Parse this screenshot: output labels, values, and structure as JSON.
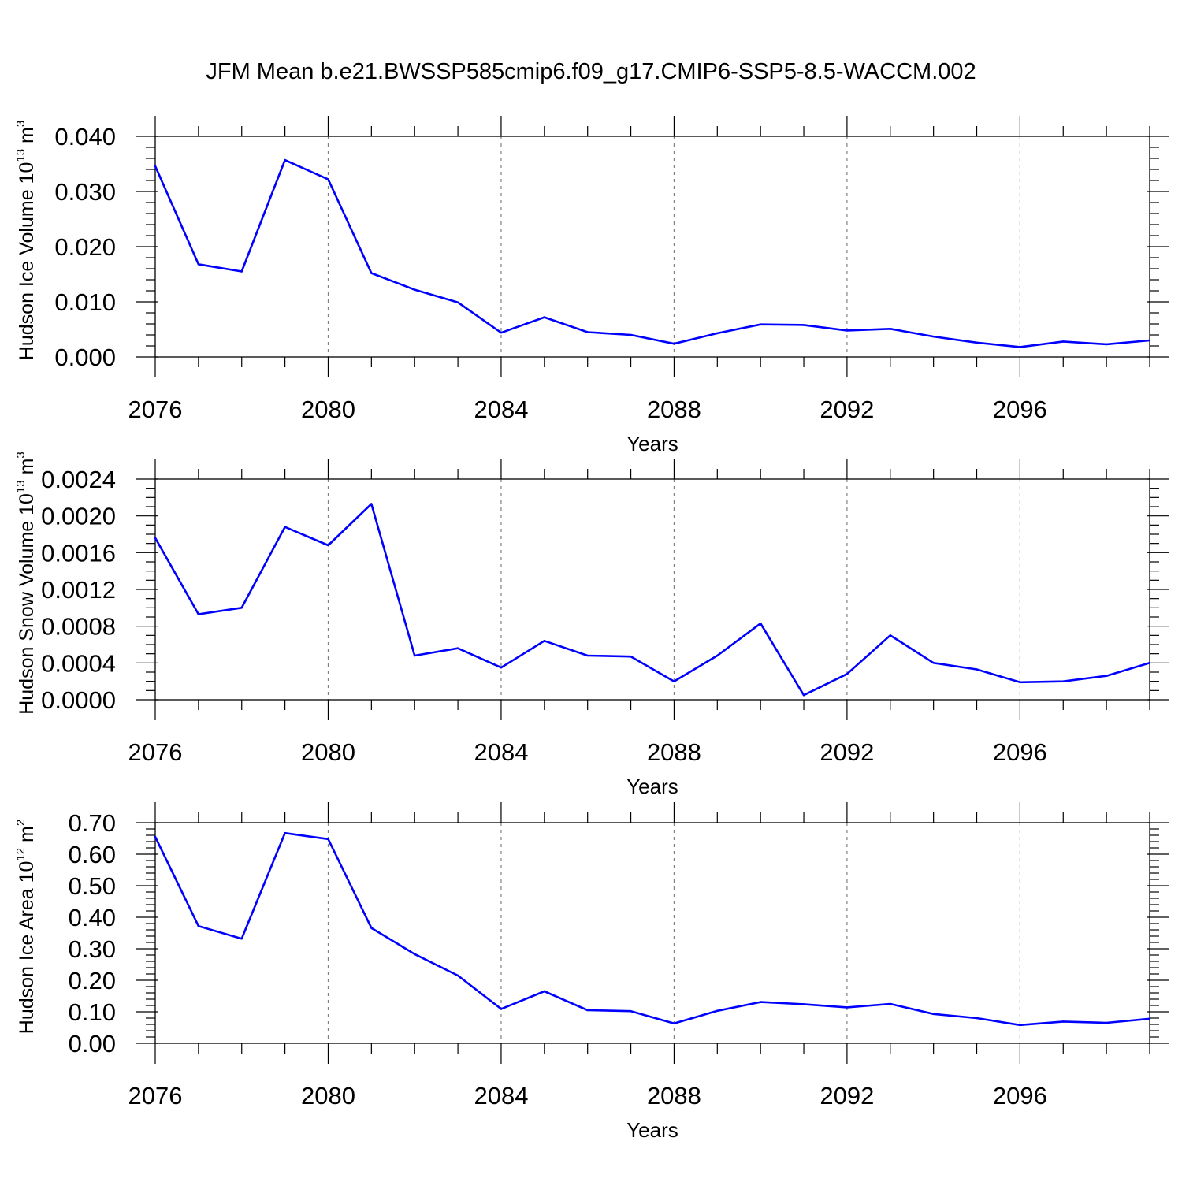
{
  "title": "JFM Mean b.e21.BWSSP585cmip6.f09_g17.CMIP6-SSP5-8.5-WACCM.002",
  "chart_data": [
    {
      "type": "line",
      "title": "",
      "xlabel": "Years",
      "ylabel_main": "Hudson Ice Volume 10",
      "ylabel_exp": "13",
      "ylabel_unit": " m",
      "ylabel_unit_exp": "3",
      "xlim": [
        2076,
        2099
      ],
      "ylim": [
        0,
        0.04
      ],
      "x_ticks": [
        2076,
        2080,
        2084,
        2088,
        2092,
        2096
      ],
      "x_tick_labels": [
        "2076",
        "2080",
        "2084",
        "2088",
        "2092",
        "2096"
      ],
      "y_ticks": [
        0,
        0.01,
        0.02,
        0.03,
        0.04
      ],
      "y_tick_labels": [
        "0.000",
        "0.010",
        "0.020",
        "0.030",
        "0.040"
      ],
      "y_minor_step": 0.002,
      "grid": "vertical dashed at major x ticks",
      "series": [
        {
          "name": "Hudson Ice Volume",
          "color": "#0000ff",
          "x": [
            2076,
            2077,
            2078,
            2079,
            2080,
            2081,
            2082,
            2083,
            2084,
            2085,
            2086,
            2087,
            2088,
            2089,
            2090,
            2091,
            2092,
            2093,
            2094,
            2095,
            2096,
            2097,
            2098,
            2099
          ],
          "y": [
            0.0346,
            0.0168,
            0.0155,
            0.0357,
            0.0322,
            0.0152,
            0.0122,
            0.0099,
            0.0044,
            0.0072,
            0.0045,
            0.004,
            0.0024,
            0.0043,
            0.0059,
            0.0058,
            0.0048,
            0.0051,
            0.0037,
            0.0026,
            0.0018,
            0.0028,
            0.0023,
            0.003
          ]
        }
      ]
    },
    {
      "type": "line",
      "title": "",
      "xlabel": "Years",
      "ylabel_main": "Hudson Snow Volume 10",
      "ylabel_exp": "13",
      "ylabel_unit": " m",
      "ylabel_unit_exp": "3",
      "xlim": [
        2076,
        2099
      ],
      "ylim": [
        0,
        0.0024
      ],
      "x_ticks": [
        2076,
        2080,
        2084,
        2088,
        2092,
        2096
      ],
      "x_tick_labels": [
        "2076",
        "2080",
        "2084",
        "2088",
        "2092",
        "2096"
      ],
      "y_ticks": [
        0,
        0.0004,
        0.0008,
        0.0012,
        0.0016,
        0.002,
        0.0024
      ],
      "y_tick_labels": [
        "0.0000",
        "0.0004",
        "0.0008",
        "0.0012",
        "0.0016",
        "0.0020",
        "0.0024"
      ],
      "y_minor_step": 0.0001,
      "grid": "vertical dashed at major x ticks",
      "series": [
        {
          "name": "Hudson Snow Volume",
          "color": "#0000ff",
          "x": [
            2076,
            2077,
            2078,
            2079,
            2080,
            2081,
            2082,
            2083,
            2084,
            2085,
            2086,
            2087,
            2088,
            2089,
            2090,
            2091,
            2092,
            2093,
            2094,
            2095,
            2096,
            2097,
            2098,
            2099
          ],
          "y": [
            0.00176,
            0.00093,
            0.001,
            0.00188,
            0.00168,
            0.00213,
            0.00048,
            0.00056,
            0.00035,
            0.00064,
            0.00048,
            0.00047,
            0.0002,
            0.00048,
            0.00083,
            5e-05,
            0.00028,
            0.0007,
            0.0004,
            0.00033,
            0.00019,
            0.0002,
            0.00026,
            0.0004
          ]
        }
      ]
    },
    {
      "type": "line",
      "title": "",
      "xlabel": "Years",
      "ylabel_main": "Hudson Ice Area 10",
      "ylabel_exp": "12",
      "ylabel_unit": " m",
      "ylabel_unit_exp": "2",
      "xlim": [
        2076,
        2099
      ],
      "ylim": [
        0,
        0.7
      ],
      "x_ticks": [
        2076,
        2080,
        2084,
        2088,
        2092,
        2096
      ],
      "x_tick_labels": [
        "2076",
        "2080",
        "2084",
        "2088",
        "2092",
        "2096"
      ],
      "y_ticks": [
        0,
        0.1,
        0.2,
        0.3,
        0.4,
        0.5,
        0.6,
        0.7
      ],
      "y_tick_labels": [
        "0.00",
        "0.10",
        "0.20",
        "0.30",
        "0.40",
        "0.50",
        "0.60",
        "0.70"
      ],
      "y_minor_step": 0.02,
      "grid": "vertical dashed at major x ticks",
      "series": [
        {
          "name": "Hudson Ice Area",
          "color": "#0000ff",
          "x": [
            2076,
            2077,
            2078,
            2079,
            2080,
            2081,
            2082,
            2083,
            2084,
            2085,
            2086,
            2087,
            2088,
            2089,
            2090,
            2091,
            2092,
            2093,
            2094,
            2095,
            2096,
            2097,
            2098,
            2099
          ],
          "y": [
            0.655,
            0.372,
            0.332,
            0.667,
            0.648,
            0.366,
            0.283,
            0.215,
            0.109,
            0.165,
            0.105,
            0.102,
            0.063,
            0.103,
            0.131,
            0.124,
            0.114,
            0.125,
            0.093,
            0.08,
            0.058,
            0.069,
            0.065,
            0.078
          ]
        }
      ]
    }
  ]
}
